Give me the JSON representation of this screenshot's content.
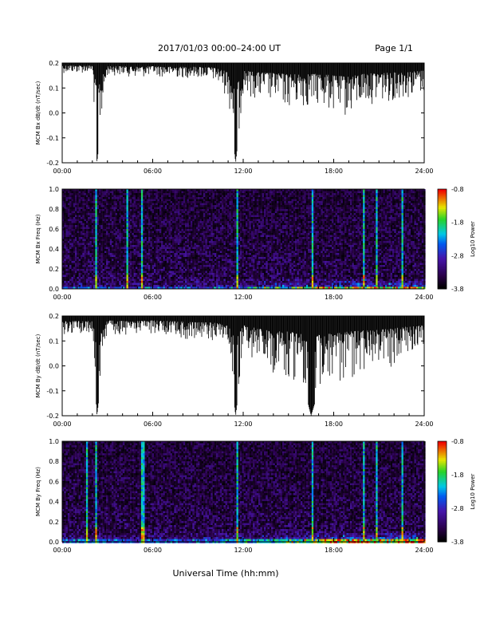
{
  "header": {
    "title": "2017/01/03  00:00–24:00 UT",
    "page": "Page 1/1"
  },
  "xaxis": {
    "label": "Universal Time (hh:mm)",
    "ticks": [
      "00:00",
      "06:00",
      "12:00",
      "18:00",
      "24:00"
    ],
    "range_hours": [
      0,
      24
    ]
  },
  "chart_data": [
    {
      "type": "area",
      "ylabel": "MCM Bx dB/dt (nT/sec)",
      "ylim": [
        -0.2,
        0.2
      ],
      "yticks": [
        "0.2",
        "0.1",
        "0.0",
        "-0.1",
        "-0.2"
      ],
      "color": "#000000",
      "envelope_hours": [
        0,
        1,
        2,
        2.3,
        3,
        4,
        5,
        6,
        7,
        8,
        9,
        10,
        11,
        11.5,
        12,
        13,
        14,
        15,
        16,
        17,
        18,
        19,
        20,
        21,
        22,
        23,
        24
      ],
      "envelope_min": [
        0.16,
        0.16,
        0.16,
        -0.2,
        0.15,
        0.15,
        0.14,
        0.15,
        0.14,
        0.14,
        0.14,
        0.13,
        0.06,
        -0.2,
        0.08,
        0.05,
        0.04,
        0.02,
        0.02,
        0.03,
        0.0,
        -0.02,
        0.03,
        0.04,
        0.05,
        0.06,
        0.08
      ]
    },
    {
      "type": "heatmap",
      "ylabel": "MCM Bx Freq (Hz)",
      "ylim": [
        0,
        1
      ],
      "yticks": [
        "1.0",
        "0.8",
        "0.6",
        "0.4",
        "0.2",
        "0.0"
      ],
      "colorbar": {
        "label": "Log10 Power",
        "ticks": [
          "-0.8",
          "-1.8",
          "-2.8",
          "-3.8"
        ],
        "range": [
          -3.8,
          -0.8
        ]
      },
      "spikes_hours": [
        2.2,
        4.3,
        5.2,
        11.6,
        16.5,
        20.0,
        20.8,
        22.5
      ]
    },
    {
      "type": "area",
      "ylabel": "MCM By dB/dt (nT/sec)",
      "ylim": [
        -0.2,
        0.2
      ],
      "yticks": [
        "0.2",
        "0.1",
        "0.0",
        "-0.1",
        "-0.2"
      ],
      "color": "#000000",
      "envelope_hours": [
        0,
        1,
        2,
        2.3,
        3,
        4,
        5,
        6,
        7,
        8,
        9,
        10,
        11,
        11.5,
        12,
        13,
        14,
        15,
        16,
        16.5,
        17,
        18,
        19,
        20,
        21,
        22,
        23,
        24
      ],
      "envelope_min": [
        0.12,
        0.12,
        0.12,
        -0.2,
        0.13,
        0.12,
        0.12,
        0.13,
        0.12,
        0.11,
        0.1,
        0.1,
        0.05,
        -0.2,
        0.05,
        0.0,
        -0.03,
        -0.05,
        -0.08,
        -0.2,
        -0.1,
        -0.08,
        -0.05,
        -0.03,
        -0.02,
        0.0,
        0.05,
        0.08
      ]
    },
    {
      "type": "heatmap",
      "ylabel": "MCM By Freq (Hz)",
      "ylim": [
        0,
        1
      ],
      "yticks": [
        "1.0",
        "0.8",
        "0.6",
        "0.4",
        "0.2",
        "0.0"
      ],
      "colorbar": {
        "label": "Log10 Power",
        "ticks": [
          "-0.8",
          "-1.8",
          "-2.8",
          "-3.8"
        ],
        "range": [
          -3.8,
          -0.8
        ]
      },
      "spikes_hours": [
        1.6,
        2.2,
        5.2,
        5.4,
        11.6,
        16.5,
        20.0,
        20.8,
        22.5
      ]
    }
  ]
}
